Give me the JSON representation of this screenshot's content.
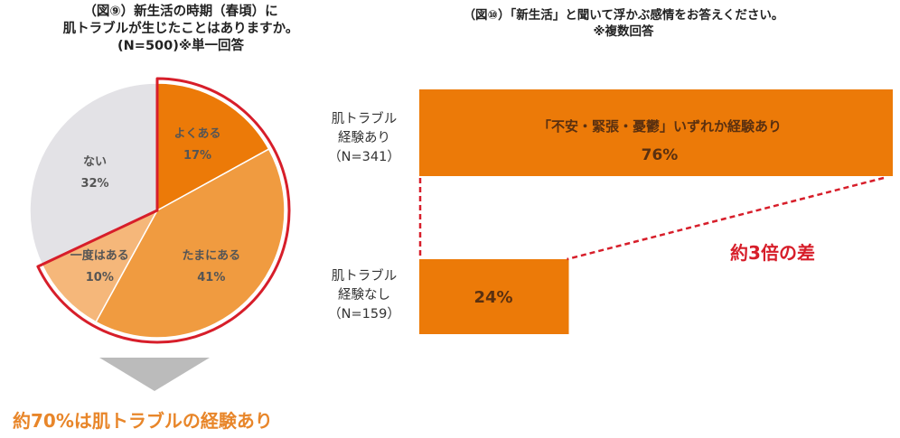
{
  "left_chart": {
    "title_lines": [
      "（図⑨）新生活の時期（春頃）に",
      "肌トラブルが生じたことはありますか。",
      "(N=500)※単一回答"
    ],
    "summary": "約70%は肌トラブルの経験あり"
  },
  "right_chart": {
    "title_lines": [
      "（図⑩）「新生活」と聞いて浮かぶ感情をお答えください。",
      "※複数回答"
    ],
    "categories": [
      {
        "lines": [
          "肌トラブル",
          "経験あり",
          "（N=341）"
        ]
      },
      {
        "lines": [
          "肌トラブル",
          "経験なし",
          "（N=159）"
        ]
      }
    ],
    "bar_label": "「不安・緊張・憂鬱」いずれか経験あり",
    "annotation": "約3倍の差"
  },
  "colors": {
    "dark_orange": "#EC7A08",
    "mid_orange": "#F09B40",
    "light_orange": "#F5B77A",
    "gray": "#E3E2E6",
    "red": "#D71E2A",
    "summary_orange": "#E8862A",
    "arrow_gray": "#BBBBBB"
  },
  "chart_data": [
    {
      "type": "pie",
      "title": "（図⑨）新生活の時期（春頃）に肌トラブルが生じたことはありますか。(N=500)※単一回答",
      "slices": [
        {
          "label": "よくある",
          "value": 17,
          "display": "17%",
          "color": "#EC7A08"
        },
        {
          "label": "たまにある",
          "value": 41,
          "display": "41%",
          "color": "#F09B40"
        },
        {
          "label": "一度はある",
          "value": 10,
          "display": "10%",
          "color": "#F5B77A"
        },
        {
          "label": "ない",
          "value": 32,
          "display": "32%",
          "color": "#E3E2E6"
        }
      ],
      "highlighted": [
        "よくある",
        "たまにある",
        "一度はある"
      ]
    },
    {
      "type": "bar",
      "orientation": "horizontal",
      "title": "（図⑩）「新生活」と聞いて浮かぶ感情をお答えください。※複数回答",
      "categories": [
        "肌トラブル経験あり（N=341）",
        "肌トラブル経験なし（N=159）"
      ],
      "values": [
        76,
        24
      ],
      "value_labels": [
        "76%",
        "24%"
      ],
      "xlim": [
        0,
        76
      ]
    }
  ]
}
